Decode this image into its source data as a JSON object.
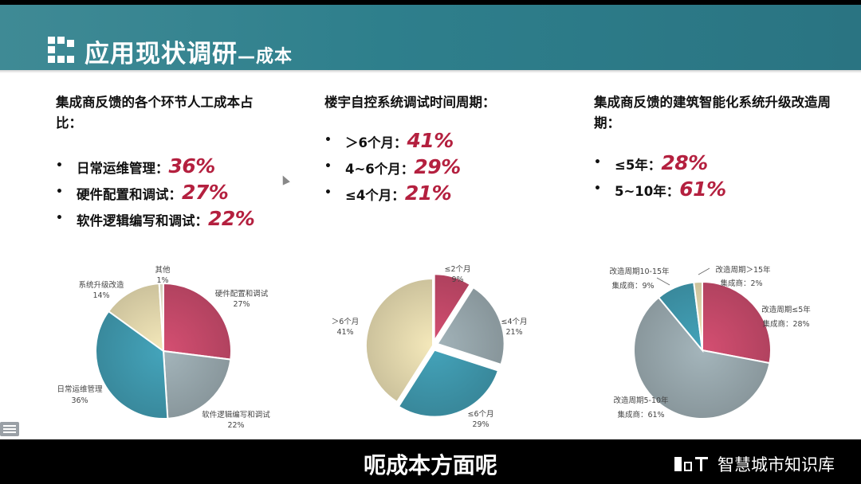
{
  "header": {
    "title": "应用现状调研",
    "subtitle": "—成本"
  },
  "columns": [
    {
      "title": "集成商反馈的各个环节人工成本占比：",
      "bullets": [
        {
          "label": "日常运维管理：",
          "pct": "36%"
        },
        {
          "label": "硬件配置和调试：",
          "pct": "27%"
        },
        {
          "label": "软件逻辑编写和调试：",
          "pct": "22%"
        }
      ]
    },
    {
      "title": "楼宇自控系统调试时间周期：",
      "bullets": [
        {
          "label": "＞6个月：",
          "pct": "41%"
        },
        {
          "label": "4~6个月：",
          "pct": "29%"
        },
        {
          "label": "≤4个月：",
          "pct": "21%"
        }
      ]
    },
    {
      "title": "集成商反馈的建筑智能化系统升级改造周期：",
      "bullets": [
        {
          "label": "≤5年：",
          "pct": "28%"
        },
        {
          "label": "5~10年：",
          "pct": "61%"
        }
      ]
    }
  ],
  "chart_data": [
    {
      "type": "pie",
      "slices": [
        {
          "label": "硬件配置和调试",
          "value": 27,
          "value_label": "27%",
          "color": "#c5496a"
        },
        {
          "label": "软件逻辑编写和调试",
          "value": 22,
          "value_label": "22%",
          "color": "#98a8ad"
        },
        {
          "label": "日常运维管理",
          "value": 36,
          "value_label": "36%",
          "color": "#3f98ad"
        },
        {
          "label": "系统升级改造",
          "value": 14,
          "value_label": "14%",
          "color": "#e3d8ad"
        },
        {
          "label": "其他",
          "value": 1,
          "value_label": "1%",
          "color": "#ece8d2"
        }
      ]
    },
    {
      "type": "pie",
      "slices": [
        {
          "label": "≤2个月",
          "value": 9,
          "value_label": "9%",
          "color": "#c5496a"
        },
        {
          "label": "≤4个月",
          "value": 21,
          "value_label": "21%",
          "color": "#98a8ad"
        },
        {
          "label": "≤6个月",
          "value": 29,
          "value_label": "29%",
          "color": "#3f98ad"
        },
        {
          "label": "＞6个月",
          "value": 41,
          "value_label": "41%",
          "color": "#e3d8ad"
        }
      ]
    },
    {
      "type": "pie",
      "slices": [
        {
          "label": "改造周期≤5年",
          "value_label": "集成商：28%",
          "value": 28,
          "color": "#c5496a"
        },
        {
          "label": "改造周期5-10年",
          "value_label": "集成商：61%",
          "value": 61,
          "color": "#98a8ad"
        },
        {
          "label": "改造周期10-15年",
          "value_label": "集成商：9%",
          "value": 9,
          "color": "#3f98ad"
        },
        {
          "label": "改造周期＞15年",
          "value_label": "集成商：2%",
          "value": 2,
          "color": "#e3d8ad"
        }
      ]
    }
  ],
  "caption": "呃成本方面呢",
  "watermark": "智慧城市知识库"
}
